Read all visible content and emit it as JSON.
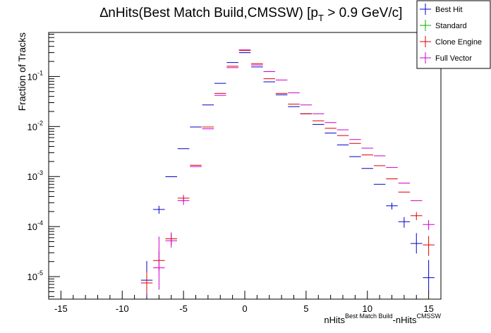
{
  "chart_data": {
    "type": "scatter",
    "title_prefix": "∆nHits(Best Match Build,CMSSW) [p",
    "title_sub": "T",
    "title_suffix": " > 0.9 GeV/c]",
    "ylabel": "Fraction of Tracks",
    "xlabel_base1": "nHits",
    "xlabel_sup1": "Best Match Build",
    "xlabel_base2": "-nHits",
    "xlabel_sup2": "CMSSW",
    "xlim": [
      -16,
      16
    ],
    "ylim_log10": [
      -5.45,
      -0.12
    ],
    "log_y": true,
    "x_ticks": [
      -15,
      -10,
      -5,
      0,
      5,
      10,
      15
    ],
    "y_ticks": [
      {
        "base": "10",
        "exp": "-5",
        "value": 1e-05
      },
      {
        "base": "10",
        "exp": "-4",
        "value": 0.0001
      },
      {
        "base": "10",
        "exp": "-3",
        "value": 0.001
      },
      {
        "base": "10",
        "exp": "-2",
        "value": 0.01
      },
      {
        "base": "10",
        "exp": "-1",
        "value": 0.1
      }
    ],
    "legend": {
      "placement": "top-right",
      "entries": [
        {
          "name": "Best Hit",
          "color": "#0000cc"
        },
        {
          "name": "Standard",
          "color": "#00aa00"
        },
        {
          "name": "Clone Engine",
          "color": "#dd0000"
        },
        {
          "name": "Full Vector",
          "color": "#cc00cc"
        }
      ]
    },
    "series": [
      {
        "name": "Best Hit",
        "color": "#0000cc",
        "points": [
          {
            "x": -8,
            "y": 8.5e-06,
            "err_lo": 4.5e-06,
            "err_hi": 1.2e-05
          },
          {
            "x": -7,
            "y": 0.00022,
            "err_lo": 4e-05,
            "err_hi": 4e-05
          },
          {
            "x": -6,
            "y": 0.00099
          },
          {
            "x": -5,
            "y": 0.0036
          },
          {
            "x": -4,
            "y": 0.0098
          },
          {
            "x": -3,
            "y": 0.027
          },
          {
            "x": -2,
            "y": 0.073
          },
          {
            "x": -1,
            "y": 0.19
          },
          {
            "x": 0,
            "y": 0.3
          },
          {
            "x": 1,
            "y": 0.155
          },
          {
            "x": 2,
            "y": 0.078
          },
          {
            "x": 3,
            "y": 0.043
          },
          {
            "x": 4,
            "y": 0.025
          },
          {
            "x": 5,
            "y": 0.018
          },
          {
            "x": 6,
            "y": 0.011
          },
          {
            "x": 7,
            "y": 0.0074
          },
          {
            "x": 8,
            "y": 0.0043
          },
          {
            "x": 9,
            "y": 0.0025
          },
          {
            "x": 10,
            "y": 0.00145
          },
          {
            "x": 11,
            "y": 0.0007
          },
          {
            "x": 12,
            "y": 0.00026,
            "err_lo": 4e-05,
            "err_hi": 4e-05
          },
          {
            "x": 13,
            "y": 0.000125,
            "err_lo": 3e-05,
            "err_hi": 3e-05
          },
          {
            "x": 14,
            "y": 4.6e-05,
            "err_lo": 1.7e-05,
            "err_hi": 2.8e-05
          },
          {
            "x": 15,
            "y": 9.5e-06,
            "err_lo": 4.5e-06,
            "err_hi": 1.2e-05
          }
        ]
      },
      {
        "name": "Standard",
        "color": "#00aa00",
        "points": []
      },
      {
        "name": "Clone Engine",
        "color": "#dd0000",
        "points": [
          {
            "x": -8,
            "y": 7.5e-06,
            "err_lo": 3e-06,
            "err_hi": 5e-06
          },
          {
            "x": -7,
            "y": 2.1e-05,
            "err_lo": 8e-06,
            "err_hi": 1.1e-05
          },
          {
            "x": -6,
            "y": 5.7e-05,
            "err_lo": 1.4e-05,
            "err_hi": 1.4e-05
          },
          {
            "x": -5,
            "y": 0.00037,
            "err_lo": 6e-05,
            "err_hi": 6e-05
          },
          {
            "x": -4,
            "y": 0.00168
          },
          {
            "x": -3,
            "y": 0.0098
          },
          {
            "x": -2,
            "y": 0.046
          },
          {
            "x": -1,
            "y": 0.16
          },
          {
            "x": 0,
            "y": 0.33
          },
          {
            "x": 1,
            "y": 0.18
          },
          {
            "x": 2,
            "y": 0.09
          },
          {
            "x": 3,
            "y": 0.046
          },
          {
            "x": 4,
            "y": 0.028
          },
          {
            "x": 5,
            "y": 0.018
          },
          {
            "x": 6,
            "y": 0.013
          },
          {
            "x": 7,
            "y": 0.0092
          },
          {
            "x": 8,
            "y": 0.0066
          },
          {
            "x": 9,
            "y": 0.0046
          },
          {
            "x": 10,
            "y": 0.0027
          },
          {
            "x": 11,
            "y": 0.00165
          },
          {
            "x": 12,
            "y": 0.0009
          },
          {
            "x": 13,
            "y": 0.00049
          },
          {
            "x": 14,
            "y": 0.000165,
            "err_lo": 3e-05,
            "err_hi": 3e-05
          },
          {
            "x": 15,
            "y": 4.3e-05,
            "err_lo": 1.7e-05,
            "err_hi": 2.2e-05
          }
        ]
      },
      {
        "name": "Full Vector",
        "color": "#cc00cc",
        "points": [
          {
            "x": -7,
            "y": 1.5e-05,
            "err_lo": 9.5e-06,
            "err_hi": 4.8e-05
          },
          {
            "x": -6,
            "y": 5.2e-05,
            "err_lo": 1.4e-05,
            "err_hi": 2.5e-05
          },
          {
            "x": -5,
            "y": 0.00033,
            "err_lo": 6e-05,
            "err_hi": 6e-05
          },
          {
            "x": -4,
            "y": 0.00158
          },
          {
            "x": -3,
            "y": 0.009
          },
          {
            "x": -2,
            "y": 0.042
          },
          {
            "x": -1,
            "y": 0.15
          },
          {
            "x": 0,
            "y": 0.34
          },
          {
            "x": 1,
            "y": 0.17
          },
          {
            "x": 2,
            "y": 0.125
          },
          {
            "x": 3,
            "y": 0.085
          },
          {
            "x": 4,
            "y": 0.047
          },
          {
            "x": 5,
            "y": 0.027
          },
          {
            "x": 6,
            "y": 0.018
          },
          {
            "x": 7,
            "y": 0.012
          },
          {
            "x": 8,
            "y": 0.0086
          },
          {
            "x": 9,
            "y": 0.0055
          },
          {
            "x": 10,
            "y": 0.0037
          },
          {
            "x": 11,
            "y": 0.0026
          },
          {
            "x": 12,
            "y": 0.00152
          },
          {
            "x": 13,
            "y": 0.00074
          },
          {
            "x": 14,
            "y": 0.00033
          },
          {
            "x": 15,
            "y": 0.00011,
            "err_lo": 2.5e-05,
            "err_hi": 2.5e-05
          }
        ]
      }
    ]
  }
}
